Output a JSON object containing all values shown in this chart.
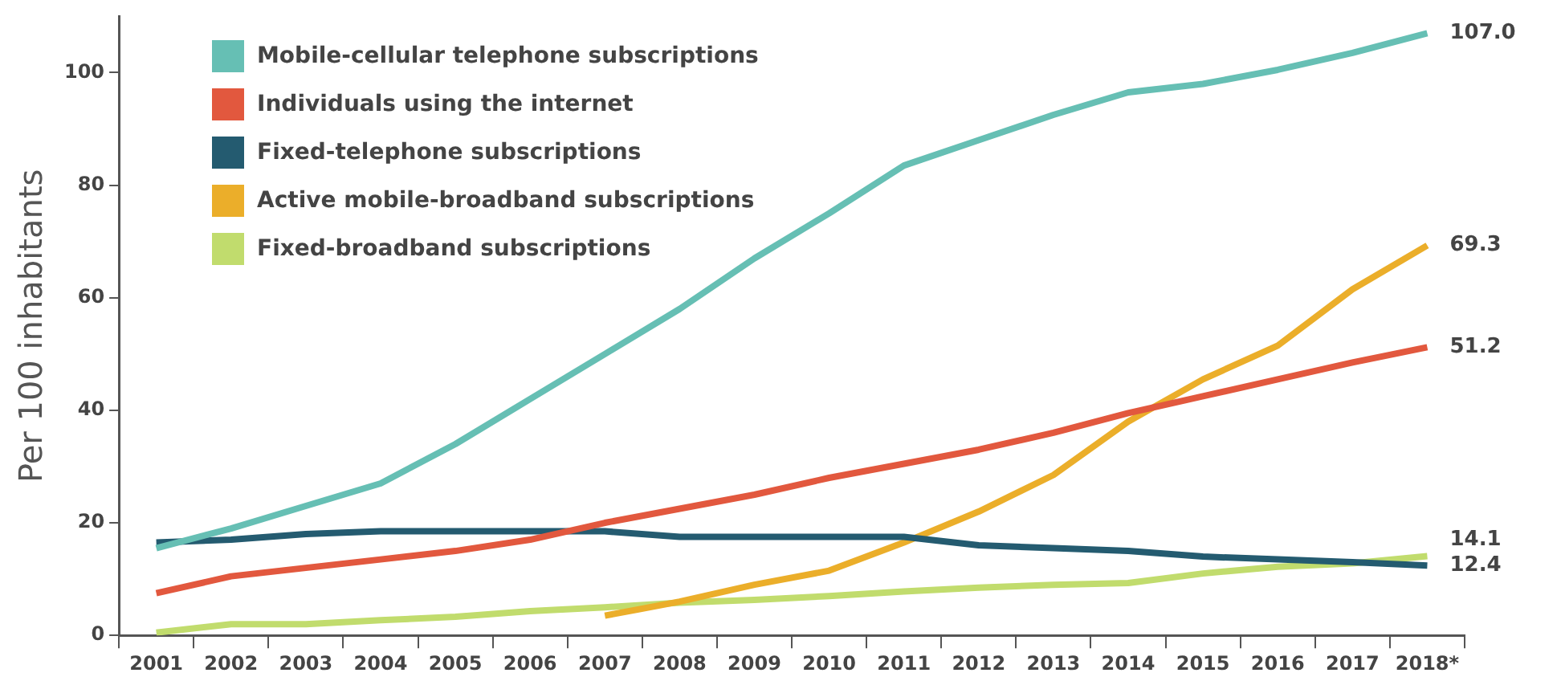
{
  "chart_data": {
    "type": "line",
    "ylabel": "Per 100 inhabitants",
    "categories": [
      "2001",
      "2002",
      "2003",
      "2004",
      "2005",
      "2006",
      "2007",
      "2008",
      "2009",
      "2010",
      "2011",
      "2012",
      "2013",
      "2014",
      "2015",
      "2016",
      "2017",
      "2018*"
    ],
    "ylim": [
      0,
      110
    ],
    "yticks": [
      0,
      20,
      40,
      60,
      80,
      100
    ],
    "grid": false,
    "legend": "top left",
    "marker": "none",
    "line_style": "solid",
    "series": [
      {
        "name": "Mobile-cellular telephone subscriptions",
        "color": "#66bfb4",
        "values": [
          15.5,
          19,
          23,
          27,
          34,
          42,
          50,
          58,
          67,
          75,
          83.5,
          88,
          92.5,
          96.5,
          98,
          100.5,
          103.5,
          107.0
        ],
        "value_labels": [
          null,
          null,
          null,
          null,
          null,
          null,
          null,
          null,
          null,
          null,
          null,
          null,
          null,
          null,
          null,
          null,
          null,
          "107.0"
        ]
      },
      {
        "name": "Individuals using the internet",
        "color": "#e2583e",
        "values": [
          7.5,
          10.5,
          12,
          13.5,
          15,
          17,
          20,
          22.5,
          25,
          28,
          30.5,
          33,
          36,
          39.5,
          42.5,
          45.5,
          48.5,
          51.2
        ],
        "value_labels": [
          null,
          null,
          null,
          null,
          null,
          null,
          null,
          null,
          null,
          null,
          null,
          null,
          null,
          null,
          null,
          null,
          null,
          "51.2"
        ]
      },
      {
        "name": "Fixed-telephone subscriptions",
        "color": "#245b70",
        "values": [
          16.5,
          17,
          18,
          18.5,
          18.5,
          18.5,
          18.5,
          17.5,
          17.5,
          17.5,
          17.5,
          16,
          15.5,
          15,
          14,
          13.5,
          13,
          12.4
        ],
        "value_labels": [
          null,
          null,
          null,
          null,
          null,
          null,
          null,
          null,
          null,
          null,
          null,
          null,
          null,
          null,
          null,
          null,
          null,
          "12.4"
        ]
      },
      {
        "name": "Active mobile-broadband subscriptions",
        "color": "#ebae2a",
        "values": [
          null,
          null,
          null,
          null,
          null,
          null,
          3.5,
          6,
          9,
          11.5,
          16.5,
          22,
          28.5,
          38,
          45.5,
          51.5,
          61.5,
          69.3
        ],
        "value_labels": [
          null,
          null,
          null,
          null,
          null,
          null,
          null,
          null,
          null,
          null,
          null,
          null,
          null,
          null,
          null,
          null,
          null,
          "69.3"
        ]
      },
      {
        "name": "Fixed-broadband subscriptions",
        "color": "#c1dc6d",
        "values": [
          0.5,
          2,
          2,
          2.7,
          3.3,
          4.3,
          5,
          5.8,
          6.3,
          7,
          7.8,
          8.5,
          9,
          9.3,
          11,
          12.2,
          12.8,
          14.1
        ],
        "value_labels": [
          null,
          null,
          null,
          null,
          null,
          null,
          null,
          null,
          null,
          null,
          null,
          null,
          null,
          null,
          null,
          null,
          null,
          "14.1"
        ]
      }
    ]
  }
}
